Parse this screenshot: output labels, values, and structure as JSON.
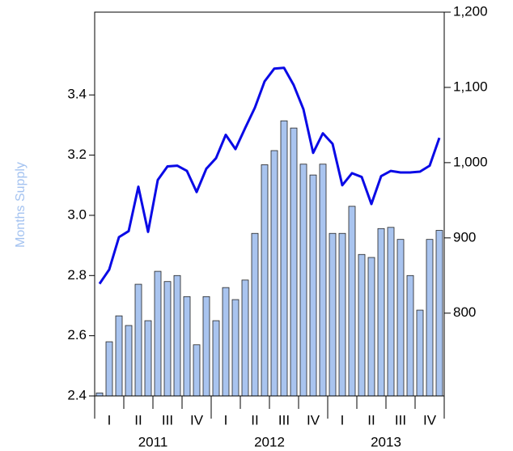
{
  "chart_data": {
    "type": "bar_line",
    "y_label": "Months Supply",
    "categories": [
      null,
      null,
      null,
      null,
      null,
      null,
      null,
      null,
      null,
      null,
      null,
      null,
      null,
      null,
      null,
      null,
      null,
      null,
      null,
      null,
      null,
      null,
      null,
      null,
      null,
      null,
      null,
      null,
      null,
      null,
      null,
      null,
      null,
      null,
      null,
      null
    ],
    "quarter_labels": [
      "I",
      "II",
      "III",
      "IV",
      "I",
      "II",
      "III",
      "IV",
      "I",
      "II",
      "III",
      "IV"
    ],
    "years": [
      "2011",
      "2012",
      "2013"
    ],
    "ylim": [
      2.4,
      3.675
    ],
    "yticks": [
      2.4,
      2.6,
      2.8,
      {
        "value": 3,
        "label": "3.0"
      },
      3.2,
      3.4
    ],
    "y2lim": [
      690,
      1200
    ],
    "y2ticks": [
      800,
      900,
      {
        "value": 1000,
        "label": "1,000"
      },
      {
        "value": 1100,
        "label": "1,100"
      },
      {
        "value": 1200,
        "label": "1,200"
      }
    ],
    "series": [
      {
        "type": "bar",
        "color": "#a9c4ef",
        "values": [
          2.41,
          2.58,
          2.666,
          2.634,
          2.771,
          2.65,
          2.814,
          2.78,
          2.8,
          2.73,
          2.57,
          2.73,
          2.65,
          2.76,
          2.72,
          2.785,
          2.94,
          3.168,
          3.215,
          3.314,
          3.29,
          3.17,
          3.134,
          3.17,
          2.94,
          2.94,
          3.03,
          2.87,
          2.86,
          2.956,
          2.96,
          2.92,
          2.8,
          2.685,
          2.92,
          2.95
        ]
      },
      {
        "type": "line",
        "axis": "y2",
        "color": "#0a0ae6",
        "values": [
          839,
          858,
          901,
          909,
          968,
          908,
          977,
          995,
          996,
          989,
          961,
          992,
          1006,
          1037,
          1018,
          1046,
          1073,
          1108,
          1125,
          1126,
          1103,
          1071,
          1013,
          1039,
          1025,
          970,
          986,
          981,
          945,
          982,
          989,
          987,
          987,
          988,
          996,
          1033
        ]
      }
    ]
  }
}
